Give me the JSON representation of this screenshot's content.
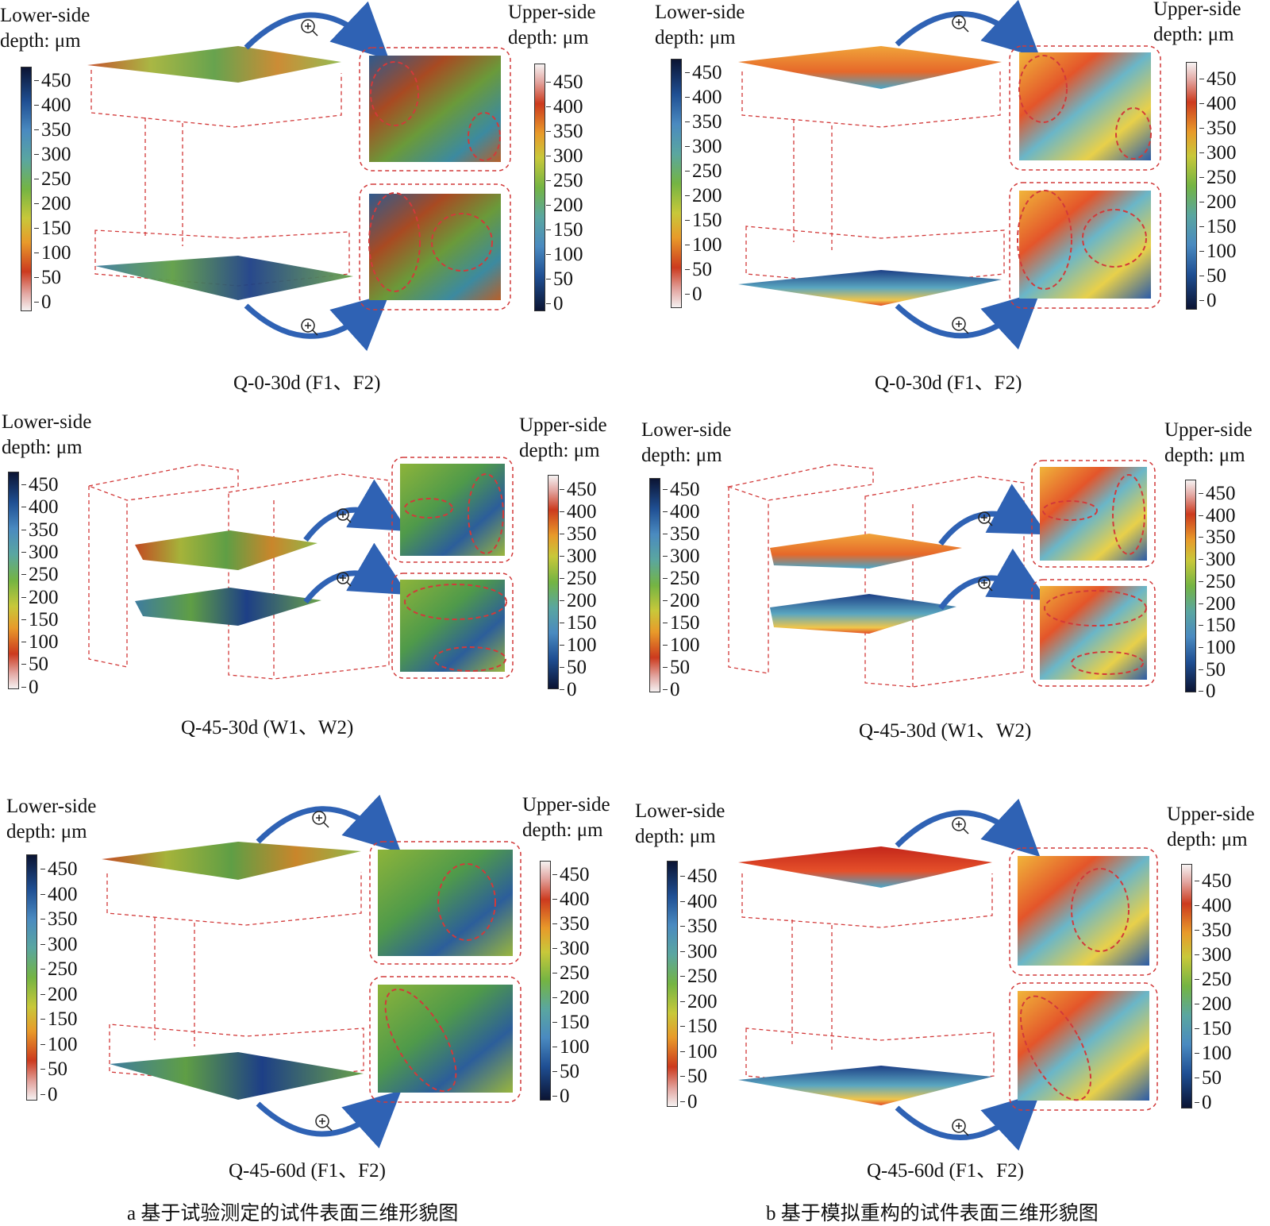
{
  "labels": {
    "lower_line1": "Lower-side",
    "lower_line2": "depth: μm",
    "upper_line1": "Upper-side",
    "upper_line2": "depth: μm"
  },
  "colorbar": {
    "lower_ticks": [
      "450",
      "400",
      "350",
      "300",
      "250",
      "200",
      "150",
      "100",
      "50",
      "0"
    ],
    "upper_ticks": [
      "450",
      "400",
      "350",
      "300",
      "250",
      "200",
      "150",
      "100",
      "50",
      "0"
    ]
  },
  "captions": {
    "r1": "Q-0-30d (F1、F2)",
    "r2": "Q-45-30d (W1、W2)",
    "r3": "Q-45-60d (F1、F2)"
  },
  "subcaptions": {
    "a": "a  基于试验测定的试件表面三维形貌图",
    "b": "b  基于模拟重构的试件表面三维形貌图"
  },
  "icons": [
    "zoom-in-icon",
    "curved-arrow-icon"
  ],
  "colors": {
    "dashed": "#d23a3a",
    "arrow": "#2f62b4",
    "surface_low": "#1c3e86",
    "surface_mid": "#74b443",
    "surface_high": "#d2461d"
  }
}
